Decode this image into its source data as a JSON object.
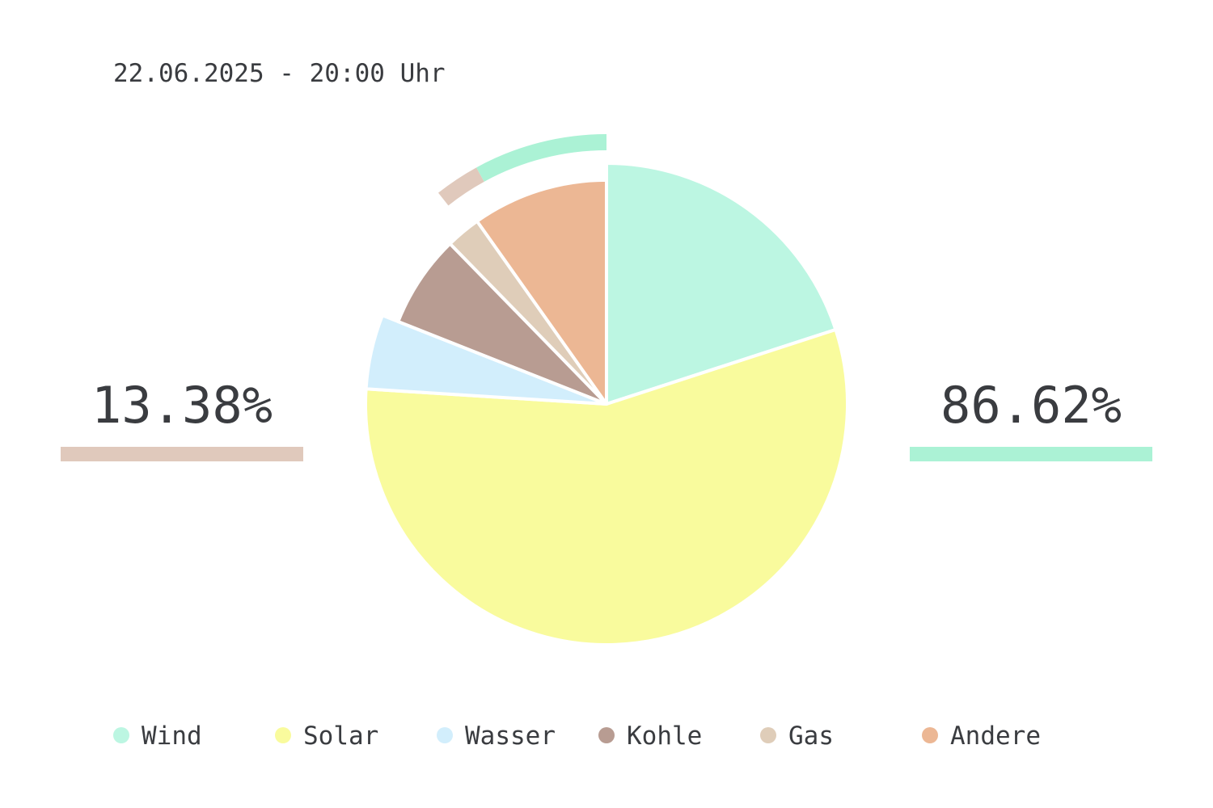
{
  "header": {
    "timestamp": "22.06.2025 - 20:00 Uhr"
  },
  "summary": {
    "left": {
      "value": "13.38%",
      "color": "#e0c9bc"
    },
    "right": {
      "value": "86.62%",
      "color": "#abf2d5"
    }
  },
  "chart_data": {
    "type": "pie",
    "start_angle_deg": 0,
    "direction": "clockwise",
    "slices": [
      {
        "name": "Wind",
        "value": 20.0,
        "color": "#bcf6e2",
        "r": 1.0
      },
      {
        "name": "Solar",
        "value": 56.0,
        "color": "#f9fb9d",
        "r": 1.0
      },
      {
        "name": "Wasser",
        "value": 5.0,
        "color": "#d2eefc",
        "r": 1.0
      },
      {
        "name": "Kohle",
        "value": 6.7,
        "color": "#b89c92",
        "r": 0.93
      },
      {
        "name": "Gas",
        "value": 2.5,
        "color": "#dfcdb9",
        "r": 0.93
      },
      {
        "name": "Andere",
        "value": 9.8,
        "color": "#ecb794",
        "r": 0.93
      }
    ],
    "outer_arcs": [
      {
        "name": "Gas",
        "from_pct": 89.3,
        "to_pct": 92.0,
        "color": "#e0c9bc"
      },
      {
        "name": "Wind",
        "from_pct": 92.0,
        "to_pct": 100.0,
        "color": "#abf2d5"
      }
    ],
    "legend": {
      "placement": "bottom",
      "entries": [
        "Wind",
        "Solar",
        "Wasser",
        "Kohle",
        "Gas",
        "Andere"
      ]
    }
  }
}
